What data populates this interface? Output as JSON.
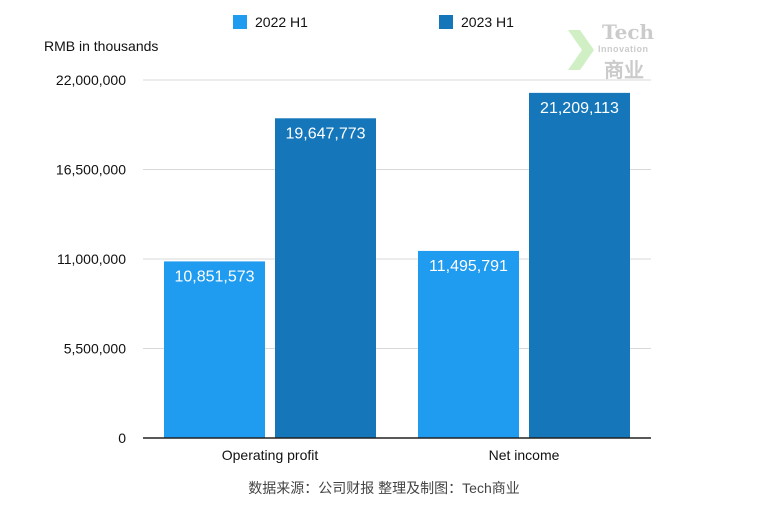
{
  "chart_data": {
    "type": "bar",
    "categories": [
      "Operating profit",
      "Net income"
    ],
    "series": [
      {
        "name": "2022 H1",
        "values": [
          10851573,
          11495791
        ],
        "color": "#1f9bf0"
      },
      {
        "name": "2023 H1",
        "values": [
          19647773,
          21209113
        ],
        "color": "#1576ba"
      }
    ],
    "data_labels": [
      [
        "10,851,573",
        "11,495,791"
      ],
      [
        "19,647,773",
        "21,209,113"
      ]
    ],
    "ylabel": "RMB in thousands",
    "ylim": [
      0,
      22000000
    ],
    "yticks": [
      0,
      5500000,
      11000000,
      16500000,
      22000000
    ],
    "ytick_labels": [
      "0",
      "5,500,000",
      "11,000,000",
      "16,500,000",
      "22,000,000"
    ],
    "grid": true,
    "legend_position": "top"
  },
  "legend": {
    "item0_label": "2022 H1",
    "item1_label": "2023 H1"
  },
  "source_text": "数据来源：公司财报 整理及制图：Tech商业",
  "watermark": {
    "line1": "Tech",
    "line2": "Innovation",
    "line3": "商业"
  }
}
